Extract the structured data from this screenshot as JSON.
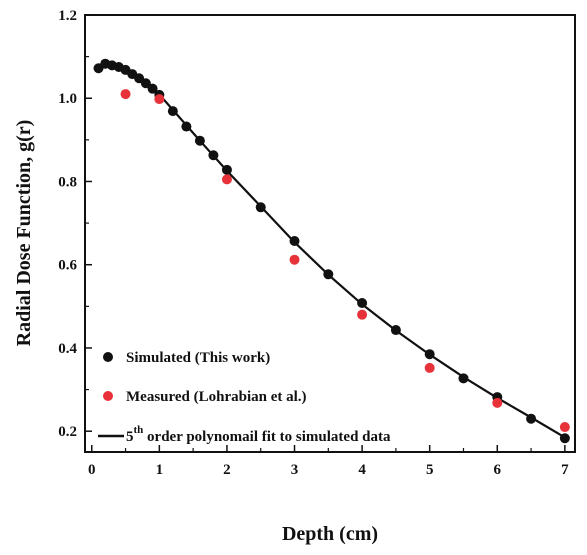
{
  "chart_data": {
    "type": "scatter",
    "xlabel": "Depth (cm)",
    "ylabel": "Radial Dose Function, g(r)",
    "xlim": [
      -0.1,
      7.15
    ],
    "ylim": [
      0.15,
      1.2
    ],
    "x_ticks": [
      "0",
      "1",
      "2",
      "3",
      "4",
      "5",
      "6",
      "7"
    ],
    "y_ticks": [
      "0.2",
      "0.4",
      "0.6",
      "0.8",
      "1.0",
      "1.2"
    ],
    "legend_position": "bottom-left",
    "series": [
      {
        "name": "Simulated (This work)",
        "kind": "points",
        "color": "#111111",
        "x": [
          0.1,
          0.2,
          0.3,
          0.4,
          0.5,
          0.6,
          0.7,
          0.8,
          0.9,
          1.0,
          1.2,
          1.4,
          1.6,
          1.8,
          2.0,
          2.5,
          3.0,
          3.5,
          4.0,
          4.5,
          5.0,
          5.5,
          6.0,
          6.5,
          7.0
        ],
        "y": [
          1.072,
          1.083,
          1.079,
          1.075,
          1.068,
          1.058,
          1.048,
          1.036,
          1.023,
          1.008,
          0.969,
          0.932,
          0.898,
          0.863,
          0.828,
          0.738,
          0.657,
          0.577,
          0.508,
          0.443,
          0.385,
          0.327,
          0.282,
          0.23,
          0.183
        ]
      },
      {
        "name": "Measured (Lohrabian et al.)",
        "kind": "points",
        "color": "#e8323a",
        "x": [
          0.5,
          1.0,
          2.0,
          3.0,
          4.0,
          5.0,
          6.0,
          7.0
        ],
        "y": [
          1.01,
          0.998,
          0.805,
          0.612,
          0.48,
          0.352,
          0.268,
          0.21
        ]
      },
      {
        "name": "5th order polynomail fit to simulated data",
        "legend_main": "5",
        "legend_sup": "th",
        "legend_rest": " order polynomail fit to simulated data",
        "kind": "line",
        "color": "#111111",
        "x": [
          0.1,
          0.3,
          0.5,
          0.7,
          0.9,
          1.0,
          1.2,
          1.4,
          1.6,
          1.8,
          2.0,
          2.5,
          3.0,
          3.5,
          4.0,
          4.5,
          5.0,
          5.5,
          6.0,
          6.5,
          7.0
        ],
        "y": [
          1.078,
          1.083,
          1.07,
          1.049,
          1.024,
          1.009,
          0.972,
          0.935,
          0.898,
          0.862,
          0.826,
          0.74,
          0.654,
          0.576,
          0.505,
          0.442,
          0.384,
          0.33,
          0.28,
          0.233,
          0.185
        ]
      }
    ]
  }
}
